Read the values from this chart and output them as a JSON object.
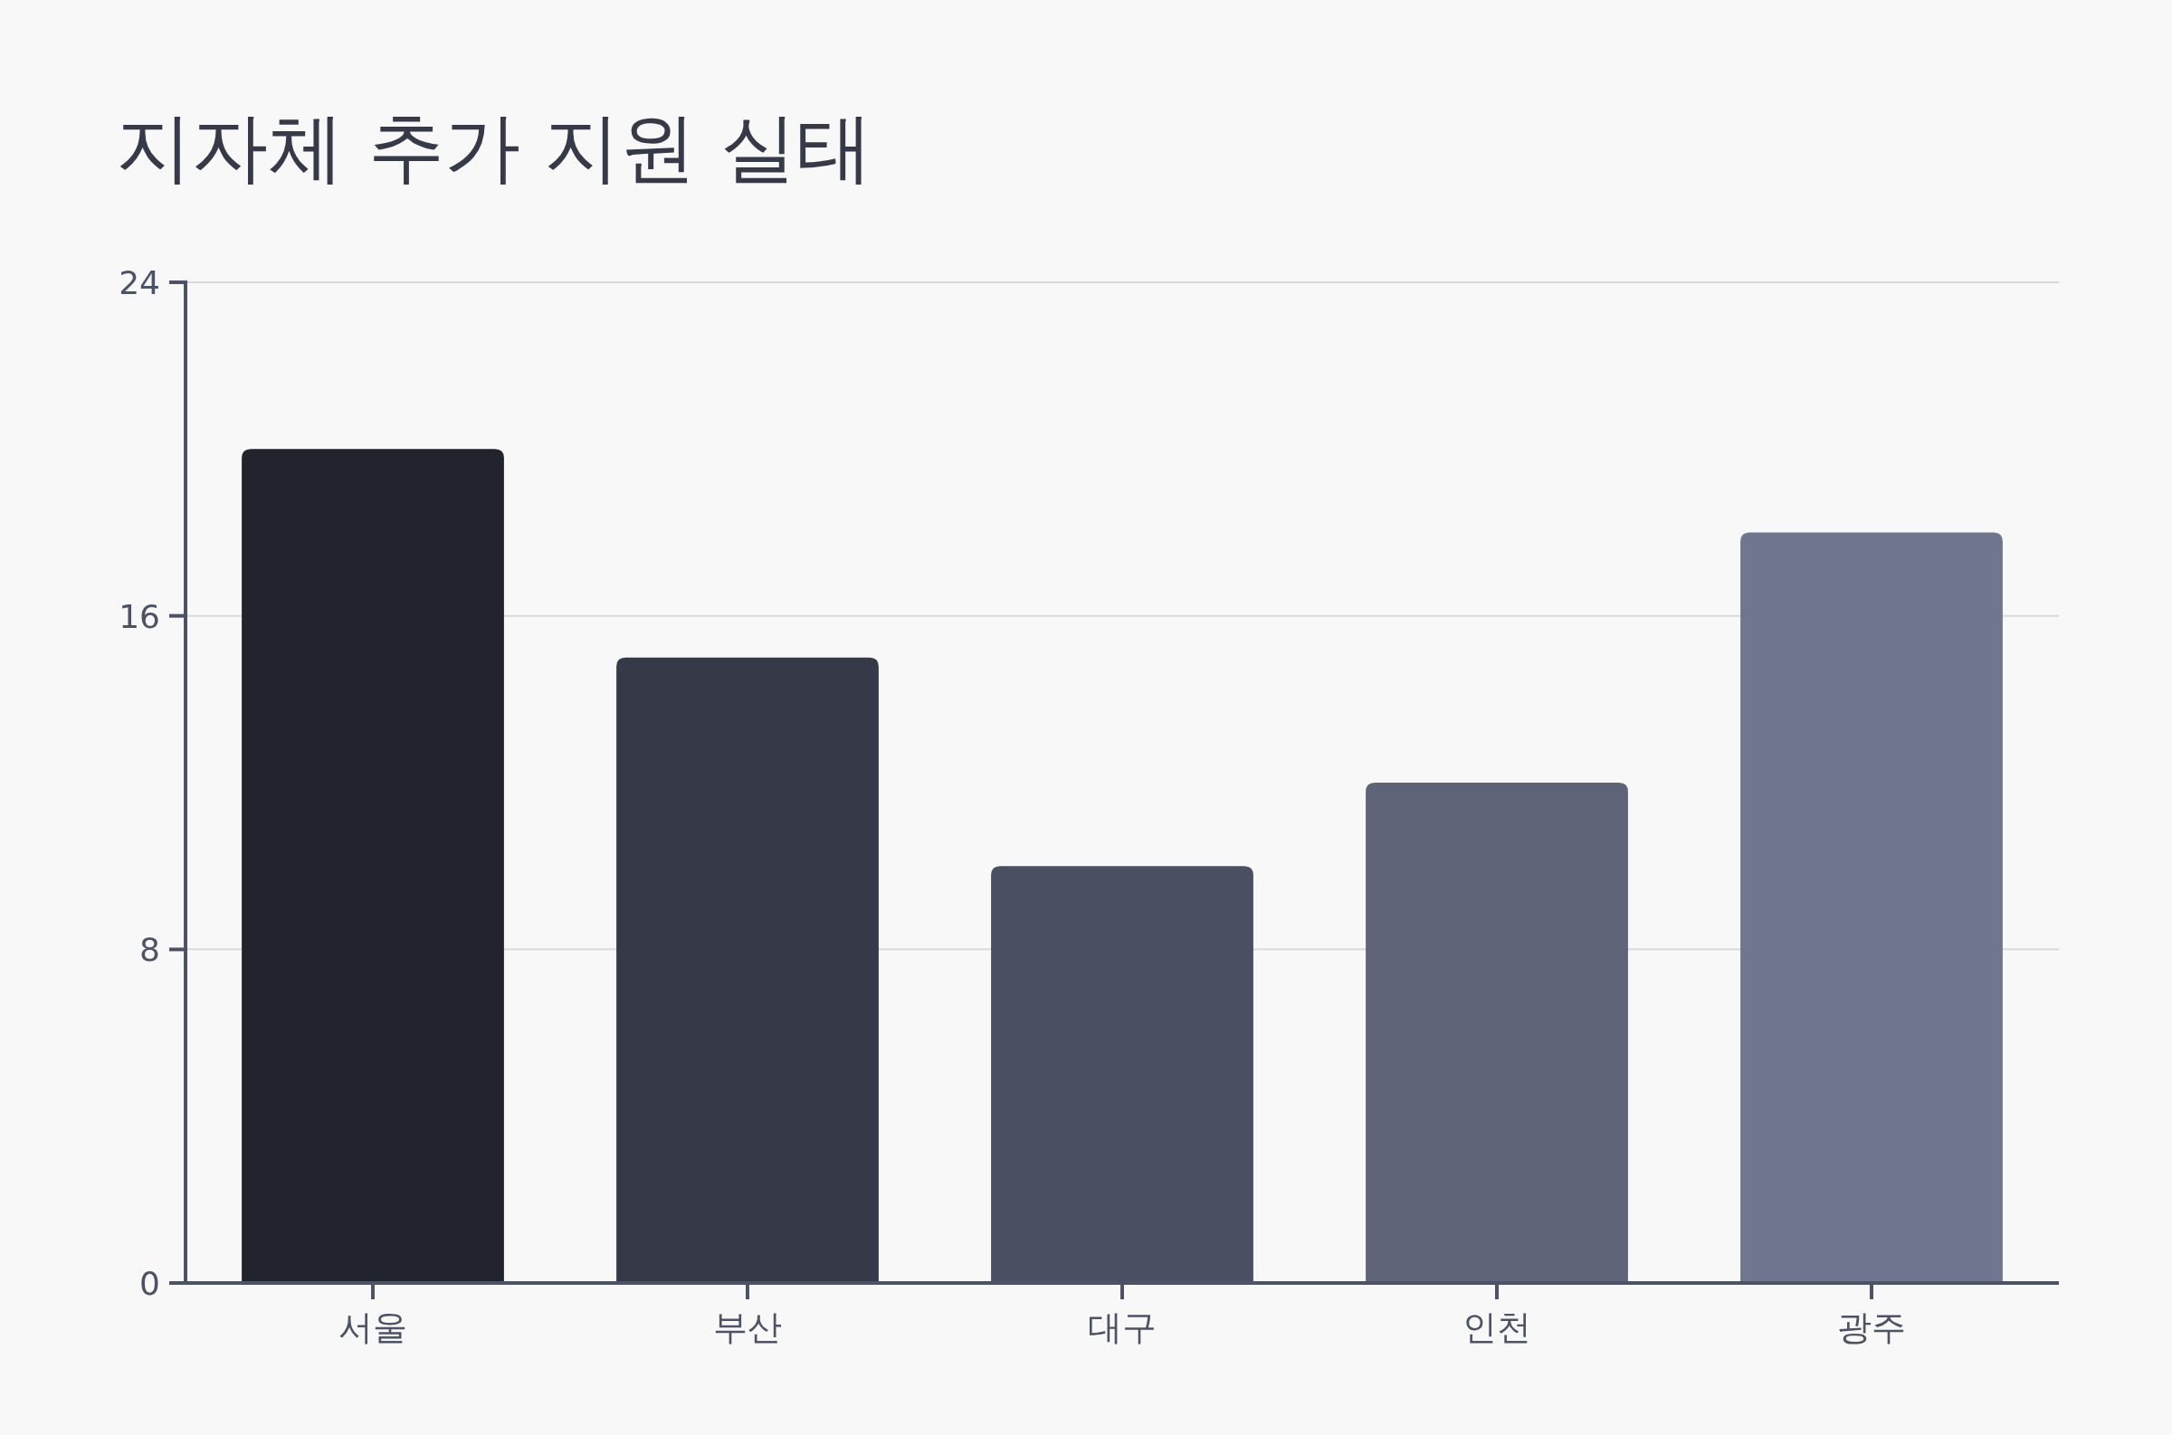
{
  "chart_data": {
    "type": "bar",
    "title": "지자체 추가 지원 실태",
    "categories": [
      "서울",
      "부산",
      "대구",
      "인천",
      "광주"
    ],
    "values": [
      20,
      15,
      10,
      12,
      18
    ],
    "colors": [
      "#21242c",
      "#363a48",
      "#4a4f61",
      "#5e6378",
      "#6f768f"
    ],
    "ylim": [
      0,
      24
    ],
    "yticks": [
      0,
      8,
      16,
      24
    ],
    "grid": "y"
  }
}
